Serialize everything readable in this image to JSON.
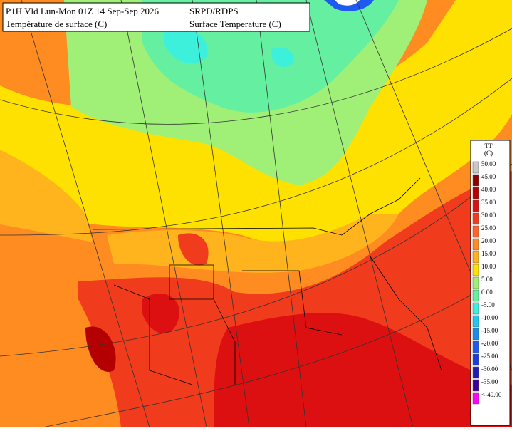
{
  "header": {
    "left": [
      "P1H Vld Lun-Mon 01Z 14 Sep-Sep 2026",
      "Température de surface (C)"
    ],
    "right": [
      "SRPD/RDPS",
      "Surface Temperature (C)"
    ]
  },
  "legend": {
    "title": [
      "TT",
      "(C)"
    ],
    "items": [
      {
        "label": "50.00",
        "color": "#c8c8c8"
      },
      {
        "label": "45.00",
        "color": "#8c0000"
      },
      {
        "label": "40.00",
        "color": "#b40000"
      },
      {
        "label": "35.00",
        "color": "#dc1010"
      },
      {
        "label": "30.00",
        "color": "#f03c1c"
      },
      {
        "label": "25.00",
        "color": "#ff6428"
      },
      {
        "label": "20.00",
        "color": "#ff8c20"
      },
      {
        "label": "15.00",
        "color": "#ffb41e"
      },
      {
        "label": "10.00",
        "color": "#ffe100"
      },
      {
        "label": "5.00",
        "color": "#a0f078"
      },
      {
        "label": "0.00",
        "color": "#64f0a0"
      },
      {
        "label": "-5.00",
        "color": "#3cf0dc"
      },
      {
        "label": "-10.00",
        "color": "#1ec8f0"
      },
      {
        "label": "-15.00",
        "color": "#148cf0"
      },
      {
        "label": "-20.00",
        "color": "#1e5af0"
      },
      {
        "label": "-25.00",
        "color": "#1e3cdc"
      },
      {
        "label": "-30.00",
        "color": "#1e1eb4"
      },
      {
        "label": "-35.00",
        "color": "#3c0096"
      },
      {
        "label": "<-40.00",
        "color": "#ff00ff"
      }
    ]
  }
}
